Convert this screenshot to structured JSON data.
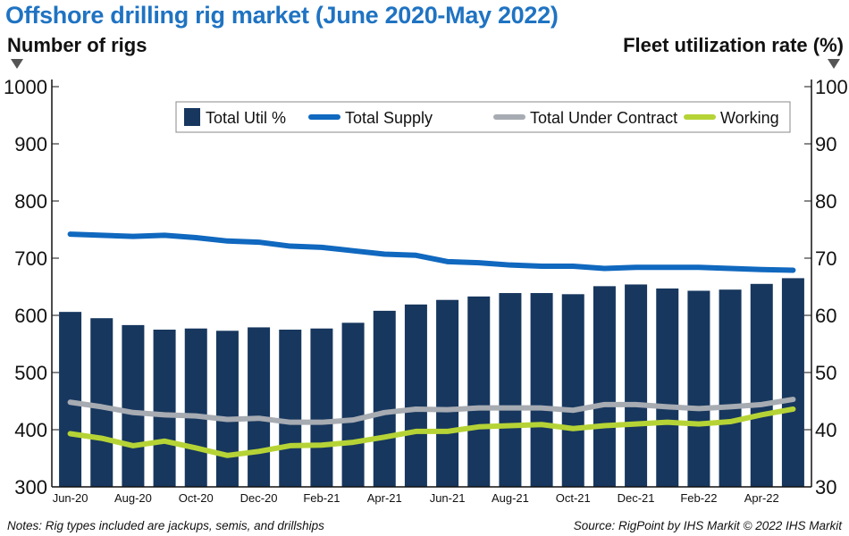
{
  "chart_data": {
    "type": "bar+line",
    "title": "Offshore drilling rig market (June 2020-May 2022)",
    "ylabel_left": "Number of rigs",
    "ylabel_right": "Fleet utilization rate (%)",
    "ylim_left": [
      300,
      1000
    ],
    "ylim_right": [
      30,
      100
    ],
    "yticks_left": [
      300,
      400,
      500,
      600,
      700,
      800,
      900,
      1000
    ],
    "yticks_right": [
      30,
      40,
      50,
      60,
      70,
      80,
      90,
      100
    ],
    "categories": [
      "Jun-20",
      "Jul-20",
      "Aug-20",
      "Sep-20",
      "Oct-20",
      "Nov-20",
      "Dec-20",
      "Jan-21",
      "Feb-21",
      "Mar-21",
      "Apr-21",
      "May-21",
      "Jun-21",
      "Jul-21",
      "Aug-21",
      "Sep-21",
      "Oct-21",
      "Nov-21",
      "Dec-21",
      "Jan-22",
      "Feb-22",
      "Mar-22",
      "Apr-22",
      "May-22"
    ],
    "xtick_labels": [
      "Jun-20",
      "Aug-20",
      "Oct-20",
      "Dec-20",
      "Feb-21",
      "Apr-21",
      "Jun-21",
      "Aug-21",
      "Oct-21",
      "Dec-21",
      "Feb-22",
      "Apr-22"
    ],
    "legend_position": "top",
    "grid": false,
    "series": [
      {
        "name": "Total Util %",
        "type": "bar",
        "axis": "right",
        "color": "#17375e",
        "values": [
          60.6,
          59.5,
          58.3,
          57.5,
          57.7,
          57.3,
          57.9,
          57.5,
          57.7,
          58.7,
          60.8,
          61.9,
          62.7,
          63.3,
          63.9,
          63.9,
          63.7,
          65.1,
          65.4,
          64.7,
          64.3,
          64.5,
          65.5,
          66.5
        ]
      },
      {
        "name": "Total Supply",
        "type": "line",
        "axis": "left",
        "color": "#1068bf",
        "values": [
          742,
          740,
          738,
          740,
          736,
          730,
          728,
          721,
          719,
          713,
          707,
          705,
          694,
          692,
          688,
          686,
          686,
          682,
          684,
          684,
          684,
          682,
          680,
          679
        ]
      },
      {
        "name": "Total Under Contract",
        "type": "line",
        "axis": "left",
        "color": "#a7abb2",
        "values": [
          448,
          440,
          430,
          426,
          424,
          418,
          420,
          413,
          413,
          417,
          430,
          436,
          435,
          438,
          438,
          438,
          434,
          444,
          444,
          440,
          437,
          440,
          444,
          453
        ]
      },
      {
        "name": "Working",
        "type": "line",
        "axis": "left",
        "color": "#b6d336",
        "values": [
          393,
          385,
          372,
          380,
          368,
          355,
          362,
          372,
          373,
          378,
          387,
          397,
          397,
          405,
          407,
          409,
          402,
          407,
          410,
          413,
          410,
          414,
          426,
          436
        ]
      }
    ]
  },
  "notes": "Notes: Rig types included are jackups, semis, and drillships",
  "source": "Source: RigPoint by IHS Markit © 2022 IHS Markit"
}
